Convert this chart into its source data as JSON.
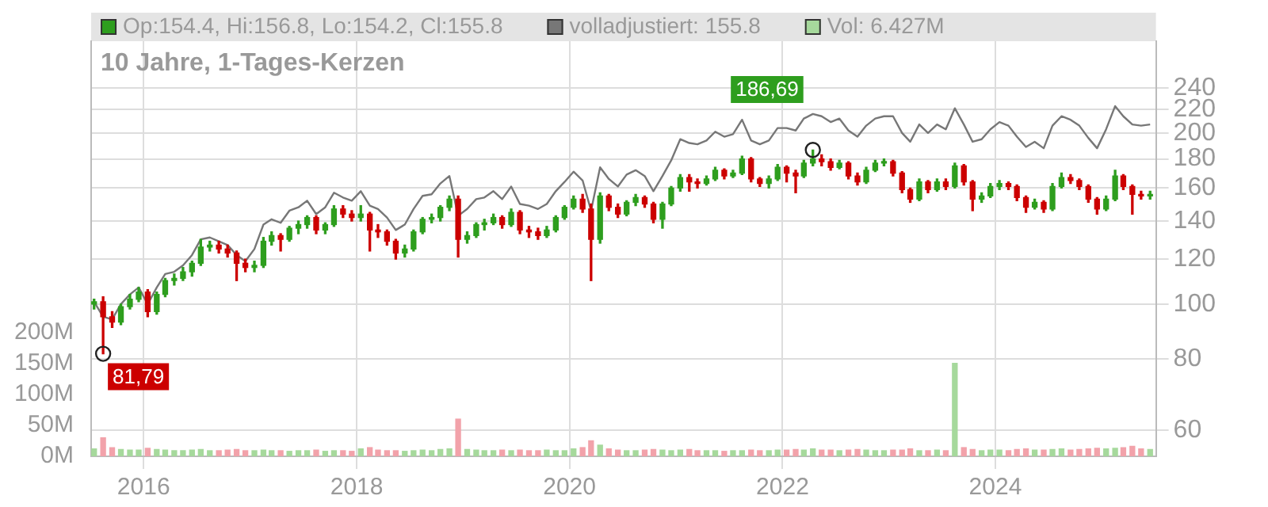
{
  "chart_data": {
    "type": "candlestick",
    "title": "10 Jahre, 1-Tages-Kerzen",
    "x": [
      "2015-07-15",
      "2015-08-15",
      "2015-09-15",
      "2015-10-15",
      "2015-11-15",
      "2015-12-15",
      "2016-01-15",
      "2016-02-15",
      "2016-03-15",
      "2016-04-15",
      "2016-05-15",
      "2016-06-15",
      "2016-07-15",
      "2016-08-15",
      "2016-09-15",
      "2016-10-15",
      "2016-11-15",
      "2016-12-15",
      "2017-01-15",
      "2017-02-15",
      "2017-03-15",
      "2017-04-15",
      "2017-05-15",
      "2017-06-15",
      "2017-07-15",
      "2017-08-15",
      "2017-09-15",
      "2017-10-15",
      "2017-11-15",
      "2017-12-15",
      "2018-01-15",
      "2018-02-15",
      "2018-03-15",
      "2018-04-15",
      "2018-05-15",
      "2018-06-15",
      "2018-07-15",
      "2018-08-15",
      "2018-09-15",
      "2018-10-15",
      "2018-11-15",
      "2018-12-15",
      "2019-01-15",
      "2019-02-15",
      "2019-03-15",
      "2019-04-15",
      "2019-05-15",
      "2019-06-15",
      "2019-07-15",
      "2019-08-15",
      "2019-09-15",
      "2019-10-15",
      "2019-11-15",
      "2019-12-15",
      "2020-01-15",
      "2020-02-15",
      "2020-03-15",
      "2020-04-15",
      "2020-05-15",
      "2020-06-15",
      "2020-07-15",
      "2020-08-15",
      "2020-09-15",
      "2020-10-15",
      "2020-11-15",
      "2020-12-15",
      "2021-01-15",
      "2021-02-15",
      "2021-03-15",
      "2021-04-15",
      "2021-05-15",
      "2021-06-15",
      "2021-07-15",
      "2021-08-15",
      "2021-09-15",
      "2021-10-15",
      "2021-11-15",
      "2021-12-15",
      "2022-01-15",
      "2022-02-15",
      "2022-03-15",
      "2022-04-15",
      "2022-05-15",
      "2022-06-15",
      "2022-07-15",
      "2022-08-15",
      "2022-09-15",
      "2022-10-15",
      "2022-11-15",
      "2022-12-15",
      "2023-01-15",
      "2023-02-15",
      "2023-03-15",
      "2023-04-15",
      "2023-05-15",
      "2023-06-15",
      "2023-07-15",
      "2023-08-15",
      "2023-09-15",
      "2023-10-15",
      "2023-11-15",
      "2023-12-15",
      "2024-01-15",
      "2024-02-15",
      "2024-03-15",
      "2024-04-15",
      "2024-05-15",
      "2024-06-15",
      "2024-07-15",
      "2024-08-15",
      "2024-09-15",
      "2024-10-15",
      "2024-11-15",
      "2024-12-15",
      "2025-01-15",
      "2025-02-15",
      "2025-03-15",
      "2025-04-15",
      "2025-05-15",
      "2025-06-15"
    ],
    "series": [
      {
        "name": "Op:154.4, Hi:156.8, Lo:154.2, Cl:155.8",
        "color": "#2e9e1e",
        "ohlc": [
          [
            100,
            102,
            98,
            101
          ],
          [
            101,
            103,
            81.79,
            95
          ],
          [
            95,
            97,
            91,
            93
          ],
          [
            93,
            100,
            92,
            99
          ],
          [
            99,
            104,
            98,
            102
          ],
          [
            102,
            107,
            101,
            105
          ],
          [
            105,
            106,
            95,
            97
          ],
          [
            97,
            105,
            96,
            104
          ],
          [
            104,
            111,
            103,
            110
          ],
          [
            110,
            113,
            108,
            111
          ],
          [
            111,
            116,
            110,
            114
          ],
          [
            114,
            119,
            112,
            118
          ],
          [
            118,
            130,
            117,
            126
          ],
          [
            126,
            129,
            124,
            127
          ],
          [
            127,
            129,
            123,
            125
          ],
          [
            125,
            127,
            121,
            123
          ],
          [
            123,
            124,
            110,
            118
          ],
          [
            118,
            120,
            114,
            116
          ],
          [
            116,
            119,
            114,
            117
          ],
          [
            117,
            131,
            116,
            129
          ],
          [
            129,
            134,
            127,
            132
          ],
          [
            132,
            133,
            124,
            130
          ],
          [
            130,
            137,
            129,
            136
          ],
          [
            136,
            140,
            133,
            138
          ],
          [
            138,
            143,
            136,
            142
          ],
          [
            142,
            143,
            133,
            135
          ],
          [
            135,
            139,
            133,
            138
          ],
          [
            138,
            149,
            137,
            147
          ],
          [
            147,
            149,
            142,
            144
          ],
          [
            144,
            146,
            140,
            142
          ],
          [
            142,
            149,
            140,
            144
          ],
          [
            144,
            145,
            124,
            135
          ],
          [
            135,
            138,
            131,
            134
          ],
          [
            134,
            135,
            127,
            129
          ],
          [
            129,
            130,
            120,
            123
          ],
          [
            123,
            127,
            121,
            125
          ],
          [
            125,
            135,
            124,
            134
          ],
          [
            134,
            142,
            133,
            141
          ],
          [
            141,
            144,
            139,
            142
          ],
          [
            142,
            149,
            140,
            148
          ],
          [
            148,
            155,
            146,
            153
          ],
          [
            153,
            155,
            121,
            130
          ],
          [
            130,
            134,
            128,
            132
          ],
          [
            132,
            139,
            131,
            138
          ],
          [
            138,
            141,
            135,
            139
          ],
          [
            139,
            144,
            138,
            142
          ],
          [
            142,
            143,
            136,
            138
          ],
          [
            138,
            147,
            137,
            145
          ],
          [
            145,
            146,
            133,
            135
          ],
          [
            135,
            137,
            131,
            134
          ],
          [
            134,
            136,
            130,
            132
          ],
          [
            132,
            137,
            131,
            135
          ],
          [
            135,
            143,
            134,
            142
          ],
          [
            142,
            149,
            141,
            148
          ],
          [
            148,
            155,
            147,
            153
          ],
          [
            153,
            156,
            145,
            147
          ],
          [
            147,
            150,
            110,
            130
          ],
          [
            130,
            157,
            128,
            155
          ],
          [
            155,
            156,
            146,
            148
          ],
          [
            148,
            150,
            142,
            144
          ],
          [
            144,
            152,
            143,
            151
          ],
          [
            151,
            156,
            149,
            154
          ],
          [
            154,
            155,
            148,
            150
          ],
          [
            150,
            151,
            139,
            141
          ],
          [
            141,
            151,
            136,
            150
          ],
          [
            150,
            161,
            149,
            160
          ],
          [
            160,
            169,
            158,
            167
          ],
          [
            167,
            169,
            158,
            164
          ],
          [
            164,
            166,
            160,
            163
          ],
          [
            163,
            168,
            162,
            166
          ],
          [
            166,
            174,
            165,
            172
          ],
          [
            172,
            173,
            166,
            168
          ],
          [
            168,
            172,
            167,
            170
          ],
          [
            170,
            182,
            169,
            180
          ],
          [
            180,
            181,
            164,
            166
          ],
          [
            166,
            167,
            161,
            163
          ],
          [
            163,
            168,
            160,
            166
          ],
          [
            166,
            176,
            165,
            174
          ],
          [
            174,
            175,
            164,
            170
          ],
          [
            170,
            172,
            157,
            168
          ],
          [
            168,
            179,
            167,
            177
          ],
          [
            177,
            186.69,
            175,
            180
          ],
          [
            180,
            183,
            175,
            178
          ],
          [
            178,
            180,
            172,
            174
          ],
          [
            174,
            179,
            173,
            177
          ],
          [
            177,
            178,
            166,
            168
          ],
          [
            168,
            170,
            162,
            164
          ],
          [
            164,
            174,
            163,
            172
          ],
          [
            172,
            179,
            171,
            177
          ],
          [
            177,
            180,
            175,
            178
          ],
          [
            178,
            179,
            168,
            170
          ],
          [
            170,
            171,
            157,
            159
          ],
          [
            159,
            160,
            151,
            153
          ],
          [
            153,
            166,
            152,
            164
          ],
          [
            164,
            165,
            157,
            159
          ],
          [
            159,
            166,
            158,
            164
          ],
          [
            164,
            166,
            159,
            161
          ],
          [
            161,
            177,
            160,
            175
          ],
          [
            175,
            176,
            162,
            164
          ],
          [
            164,
            165,
            146,
            153
          ],
          [
            153,
            157,
            151,
            155
          ],
          [
            155,
            163,
            154,
            161
          ],
          [
            161,
            165,
            159,
            163
          ],
          [
            163,
            164,
            159,
            161
          ],
          [
            161,
            162,
            152,
            154
          ],
          [
            154,
            155,
            145,
            148
          ],
          [
            148,
            153,
            147,
            151
          ],
          [
            151,
            152,
            145,
            147
          ],
          [
            147,
            163,
            146,
            161
          ],
          [
            161,
            170,
            160,
            167
          ],
          [
            167,
            169,
            163,
            165
          ],
          [
            165,
            166,
            159,
            161
          ],
          [
            161,
            162,
            151,
            153
          ],
          [
            153,
            154,
            144,
            147
          ],
          [
            147,
            155,
            146,
            153
          ],
          [
            153,
            172,
            152,
            168
          ],
          [
            168,
            169,
            159,
            161
          ],
          [
            161,
            162,
            144,
            156
          ],
          [
            156,
            158,
            153,
            155
          ],
          [
            155,
            158,
            153,
            155.8
          ]
        ],
        "colors": [
          "#2e9e1e",
          "#cc0000",
          "#cc0000",
          "#2e9e1e",
          "#2e9e1e",
          "#2e9e1e",
          "#cc0000",
          "#2e9e1e",
          "#2e9e1e",
          "#2e9e1e",
          "#2e9e1e",
          "#2e9e1e",
          "#2e9e1e",
          "#2e9e1e",
          "#cc0000",
          "#cc0000",
          "#cc0000",
          "#cc0000",
          "#2e9e1e",
          "#2e9e1e",
          "#2e9e1e",
          "#cc0000",
          "#2e9e1e",
          "#2e9e1e",
          "#2e9e1e",
          "#cc0000",
          "#2e9e1e",
          "#2e9e1e",
          "#cc0000",
          "#cc0000",
          "#2e9e1e",
          "#cc0000",
          "#cc0000",
          "#cc0000",
          "#cc0000",
          "#2e9e1e",
          "#2e9e1e",
          "#2e9e1e",
          "#2e9e1e",
          "#2e9e1e",
          "#2e9e1e",
          "#cc0000",
          "#2e9e1e",
          "#2e9e1e",
          "#2e9e1e",
          "#2e9e1e",
          "#cc0000",
          "#2e9e1e",
          "#cc0000",
          "#cc0000",
          "#cc0000",
          "#2e9e1e",
          "#2e9e1e",
          "#2e9e1e",
          "#2e9e1e",
          "#cc0000",
          "#cc0000",
          "#2e9e1e",
          "#cc0000",
          "#cc0000",
          "#2e9e1e",
          "#2e9e1e",
          "#cc0000",
          "#cc0000",
          "#2e9e1e",
          "#2e9e1e",
          "#2e9e1e",
          "#cc0000",
          "#cc0000",
          "#2e9e1e",
          "#2e9e1e",
          "#cc0000",
          "#2e9e1e",
          "#2e9e1e",
          "#cc0000",
          "#cc0000",
          "#2e9e1e",
          "#2e9e1e",
          "#cc0000",
          "#cc0000",
          "#2e9e1e",
          "#2e9e1e",
          "#cc0000",
          "#cc0000",
          "#2e9e1e",
          "#cc0000",
          "#cc0000",
          "#2e9e1e",
          "#2e9e1e",
          "#2e9e1e",
          "#cc0000",
          "#cc0000",
          "#cc0000",
          "#2e9e1e",
          "#cc0000",
          "#2e9e1e",
          "#cc0000",
          "#2e9e1e",
          "#cc0000",
          "#cc0000",
          "#2e9e1e",
          "#2e9e1e",
          "#2e9e1e",
          "#cc0000",
          "#cc0000",
          "#cc0000",
          "#2e9e1e",
          "#cc0000",
          "#2e9e1e",
          "#2e9e1e",
          "#cc0000",
          "#cc0000",
          "#cc0000",
          "#cc0000",
          "#2e9e1e",
          "#2e9e1e",
          "#cc0000",
          "#cc0000",
          "#cc0000",
          "#2e9e1e"
        ]
      },
      {
        "type": "line",
        "name": "volladjustiert: 155.8",
        "color": "#777777",
        "values": [
          101,
          95,
          94,
          100,
          104,
          107,
          100,
          107,
          113,
          114,
          117,
          122,
          130,
          131,
          129,
          127,
          122,
          119,
          125,
          138,
          141,
          139,
          146,
          148,
          152,
          144,
          148,
          157,
          154,
          152,
          158,
          149,
          147,
          142,
          135,
          138,
          147,
          155,
          156,
          163,
          168,
          143,
          147,
          153,
          154,
          158,
          153,
          161,
          150,
          149,
          147,
          150,
          158,
          164,
          171,
          165,
          146,
          174,
          166,
          161,
          169,
          172,
          168,
          158,
          168,
          179,
          195,
          192,
          191,
          194,
          201,
          197,
          199,
          211,
          194,
          191,
          194,
          204,
          204,
          202,
          212,
          216,
          214,
          209,
          212,
          202,
          197,
          206,
          212,
          214,
          214,
          200,
          193,
          207,
          200,
          207,
          203,
          221,
          207,
          193,
          195,
          203,
          209,
          206,
          197,
          189,
          193,
          188,
          206,
          214,
          211,
          206,
          196,
          188,
          203,
          223,
          214,
          207,
          206,
          207
        ]
      },
      {
        "type": "bar",
        "name": "Vol: 6.427M",
        "axis": "y2",
        "color": "#a6d99c",
        "values": [
          12,
          30,
          14,
          11,
          10,
          10,
          13,
          11,
          10,
          9,
          9,
          10,
          11,
          9,
          9,
          10,
          11,
          9,
          9,
          10,
          9,
          9,
          8,
          9,
          9,
          10,
          8,
          9,
          9,
          8,
          12,
          14,
          10,
          9,
          9,
          8,
          9,
          10,
          9,
          11,
          12,
          60,
          11,
          10,
          9,
          9,
          10,
          9,
          10,
          9,
          9,
          10,
          9,
          9,
          12,
          14,
          25,
          18,
          12,
          10,
          9,
          9,
          10,
          11,
          10,
          9,
          10,
          11,
          9,
          9,
          9,
          8,
          9,
          9,
          10,
          9,
          9,
          10,
          10,
          11,
          10,
          12,
          10,
          10,
          9,
          10,
          11,
          10,
          9,
          9,
          10,
          10,
          12,
          9,
          9,
          10,
          9,
          150,
          14,
          11,
          9,
          10,
          10,
          9,
          11,
          12,
          10,
          10,
          11,
          12,
          10,
          11,
          12,
          13,
          12,
          13,
          14,
          16,
          12,
          11
        ],
        "colors": [
          "#a6d99c",
          "#f2a2aa",
          "#f2a2aa",
          "#a6d99c",
          "#a6d99c",
          "#a6d99c",
          "#f2a2aa",
          "#a6d99c",
          "#a6d99c",
          "#a6d99c",
          "#a6d99c",
          "#a6d99c",
          "#a6d99c",
          "#a6d99c",
          "#f2a2aa",
          "#f2a2aa",
          "#f2a2aa",
          "#f2a2aa",
          "#a6d99c",
          "#a6d99c",
          "#a6d99c",
          "#f2a2aa",
          "#a6d99c",
          "#a6d99c",
          "#a6d99c",
          "#f2a2aa",
          "#a6d99c",
          "#a6d99c",
          "#f2a2aa",
          "#f2a2aa",
          "#a6d99c",
          "#f2a2aa",
          "#f2a2aa",
          "#f2a2aa",
          "#f2a2aa",
          "#a6d99c",
          "#a6d99c",
          "#a6d99c",
          "#a6d99c",
          "#a6d99c",
          "#a6d99c",
          "#f2a2aa",
          "#a6d99c",
          "#a6d99c",
          "#a6d99c",
          "#a6d99c",
          "#f2a2aa",
          "#a6d99c",
          "#f2a2aa",
          "#f2a2aa",
          "#f2a2aa",
          "#a6d99c",
          "#a6d99c",
          "#a6d99c",
          "#a6d99c",
          "#f2a2aa",
          "#f2a2aa",
          "#a6d99c",
          "#f2a2aa",
          "#f2a2aa",
          "#a6d99c",
          "#a6d99c",
          "#f2a2aa",
          "#f2a2aa",
          "#a6d99c",
          "#a6d99c",
          "#a6d99c",
          "#f2a2aa",
          "#f2a2aa",
          "#a6d99c",
          "#a6d99c",
          "#f2a2aa",
          "#a6d99c",
          "#a6d99c",
          "#f2a2aa",
          "#f2a2aa",
          "#a6d99c",
          "#a6d99c",
          "#f2a2aa",
          "#f2a2aa",
          "#a6d99c",
          "#a6d99c",
          "#f2a2aa",
          "#f2a2aa",
          "#a6d99c",
          "#f2a2aa",
          "#f2a2aa",
          "#a6d99c",
          "#a6d99c",
          "#a6d99c",
          "#f2a2aa",
          "#f2a2aa",
          "#f2a2aa",
          "#a6d99c",
          "#f2a2aa",
          "#a6d99c",
          "#f2a2aa",
          "#a6d99c",
          "#f2a2aa",
          "#f2a2aa",
          "#a6d99c",
          "#a6d99c",
          "#a6d99c",
          "#f2a2aa",
          "#f2a2aa",
          "#f2a2aa",
          "#a6d99c",
          "#f2a2aa",
          "#a6d99c",
          "#a6d99c",
          "#f2a2aa",
          "#f2a2aa",
          "#f2a2aa",
          "#f2a2aa",
          "#a6d99c",
          "#a6d99c",
          "#f2a2aa",
          "#f2a2aa",
          "#f2a2aa",
          "#a6d99c"
        ]
      }
    ],
    "log": true,
    "ylim": [
      54,
      290
    ],
    "yticks": [
      60,
      80,
      100,
      120,
      140,
      160,
      180,
      200,
      220,
      240
    ],
    "y2lim": [
      0,
      670
    ],
    "y2ticks": [
      {
        "value": 0,
        "label": "0M"
      },
      {
        "value": 50,
        "label": "50M"
      },
      {
        "value": 100,
        "label": "100M"
      },
      {
        "value": 150,
        "label": "150M"
      },
      {
        "value": 200,
        "label": "200M"
      }
    ],
    "xlim": [
      "2015-07-05",
      "2025-07-05"
    ],
    "xticks": [
      "2016",
      "2018",
      "2020",
      "2022",
      "2024"
    ],
    "grid": true,
    "legend": "top left",
    "annotations": [
      {
        "text": "81,79",
        "x": "2015-08-15",
        "y": 81.79
      },
      {
        "text": "186,69",
        "x": "2022-04-15",
        "y": 186.69
      }
    ]
  }
}
